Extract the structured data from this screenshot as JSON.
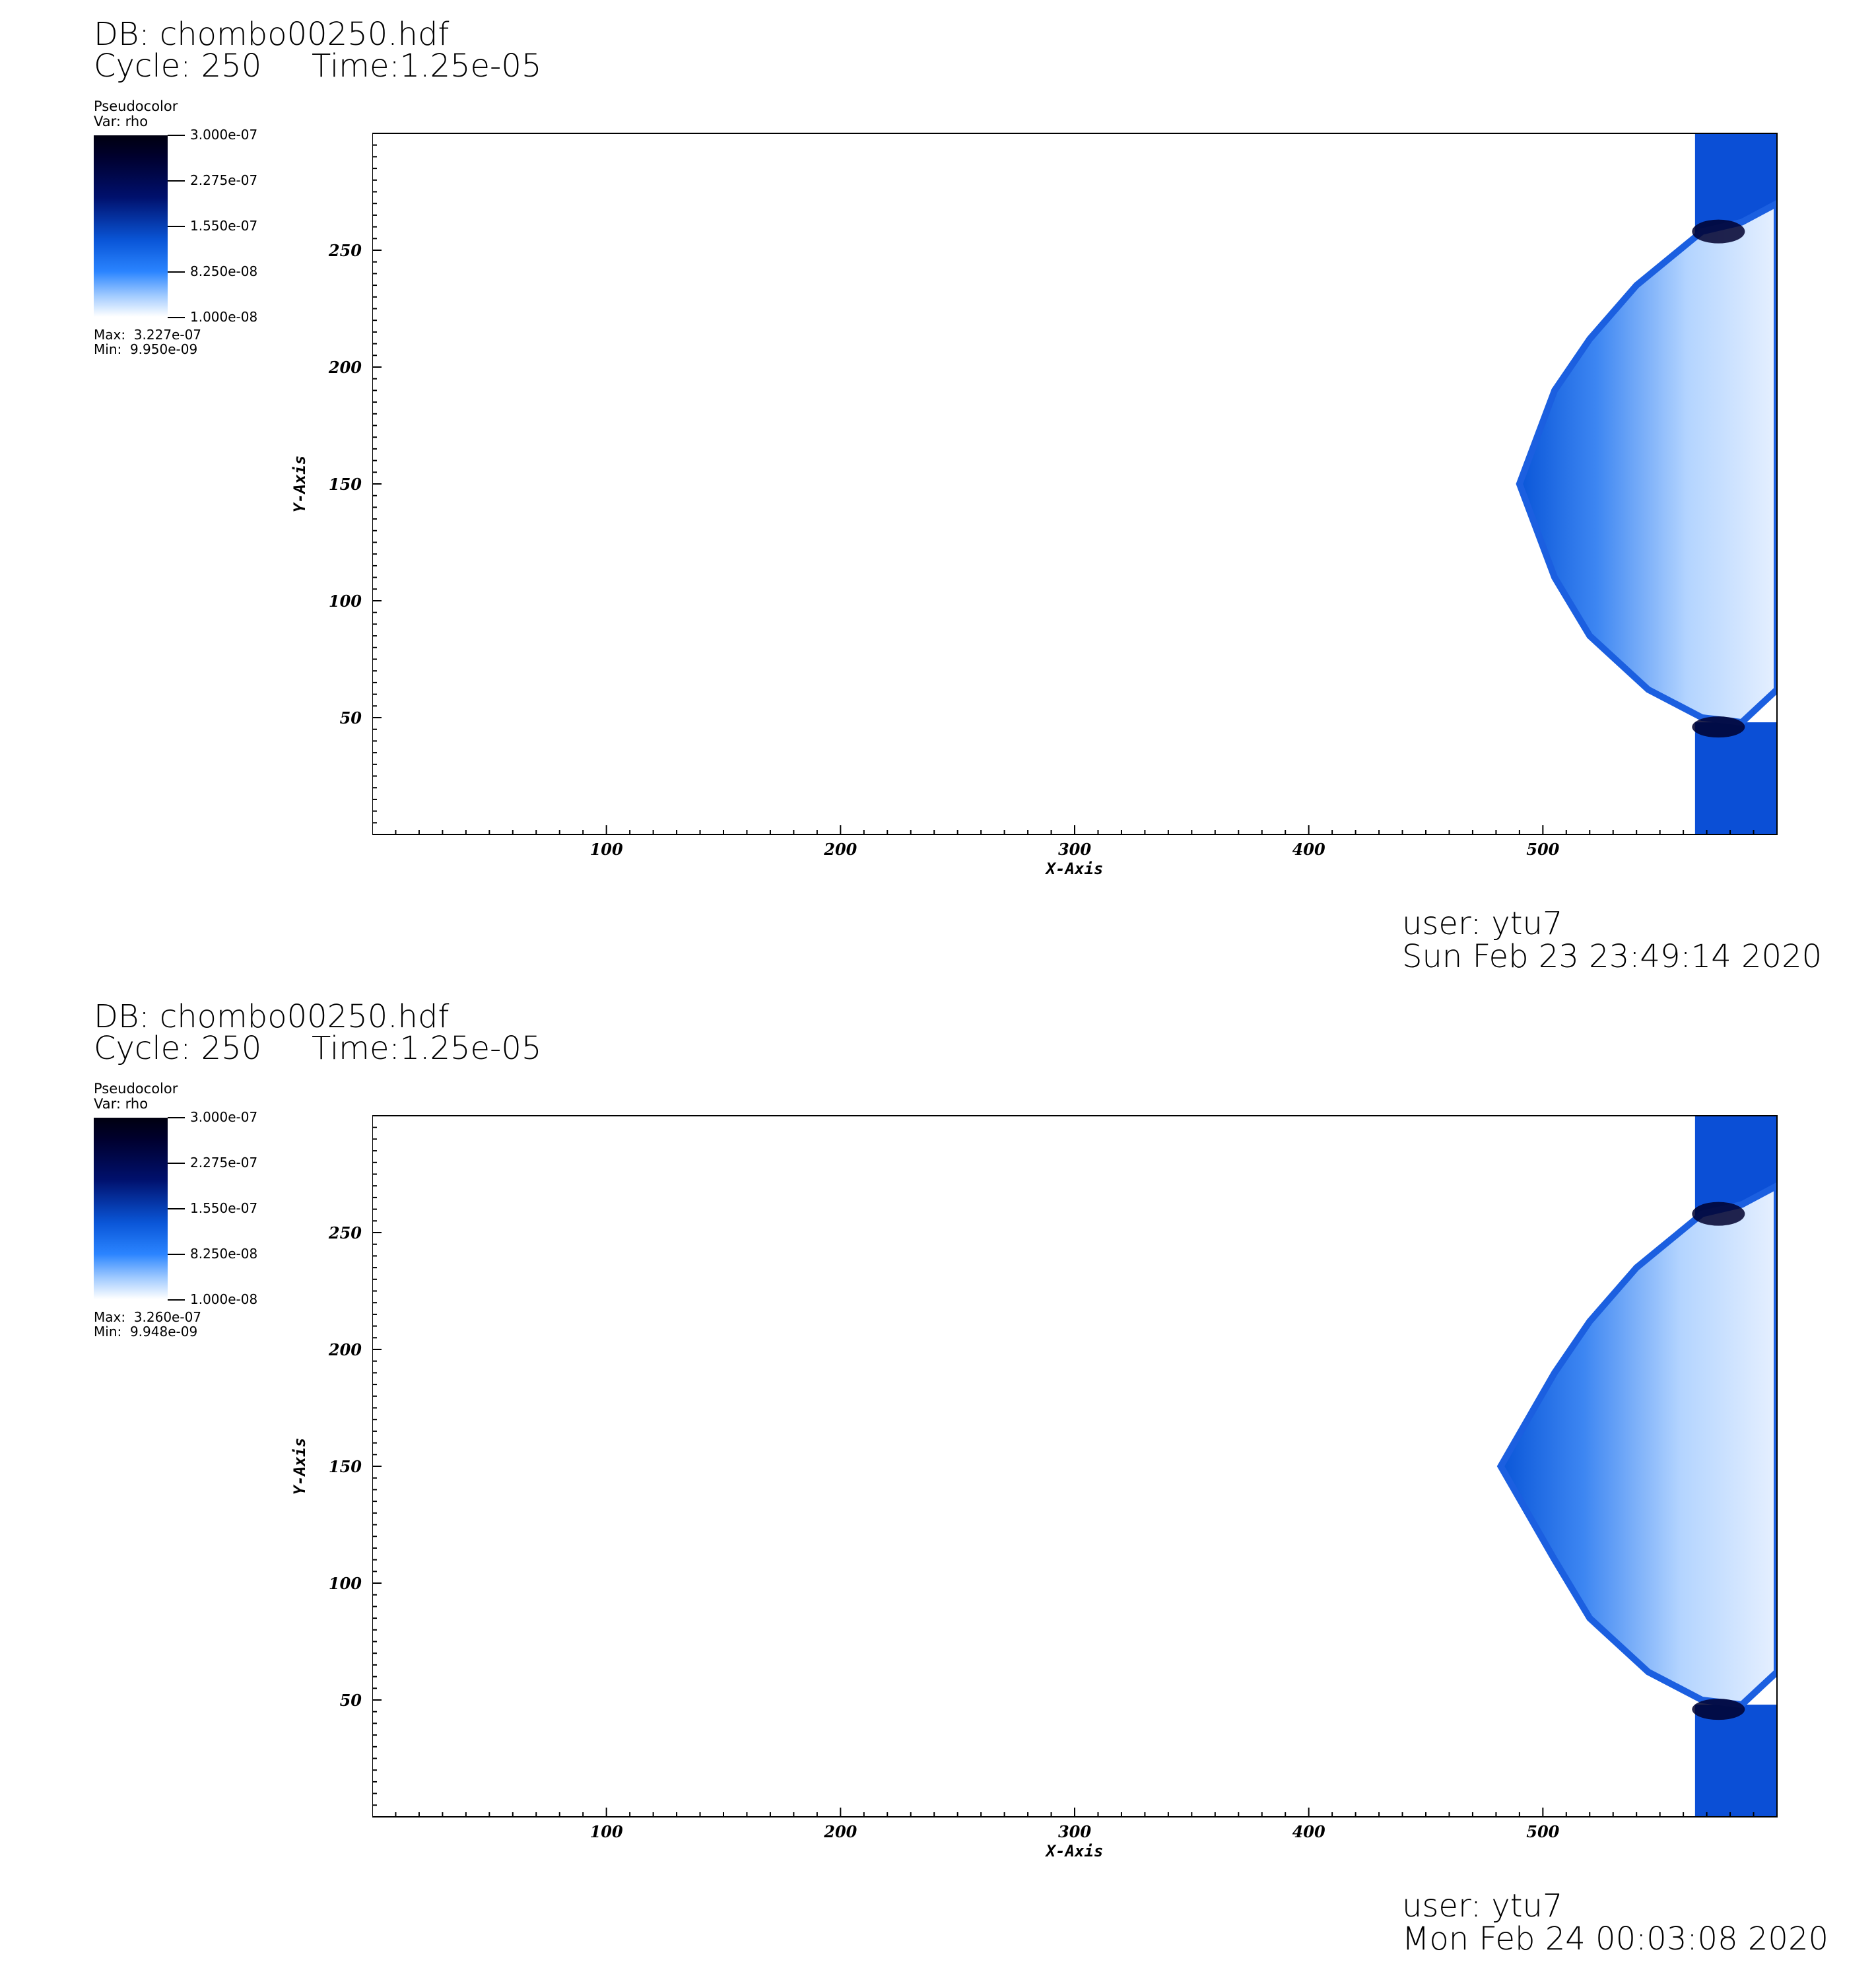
{
  "panels": [
    {
      "db_label": "DB: chombo00250.hdf",
      "cycle_label": "Cycle: 250",
      "time_label": "Time:1.25e-05",
      "legend": {
        "title": "Pseudocolor",
        "var": "Var: rho",
        "ticks": [
          "3.000e-07",
          "2.275e-07",
          "1.550e-07",
          "8.250e-08",
          "1.000e-08"
        ],
        "max": "Max:  3.227e-07",
        "min": "Min:  9.950e-09"
      },
      "user": "user: ytu7",
      "date": "Sun Feb 23 23:49:14 2020"
    },
    {
      "db_label": "DB: chombo00250.hdf",
      "cycle_label": "Cycle: 250",
      "time_label": "Time:1.25e-05",
      "legend": {
        "title": "Pseudocolor",
        "var": "Var: rho",
        "ticks": [
          "3.000e-07",
          "2.275e-07",
          "1.550e-07",
          "8.250e-08",
          "1.000e-08"
        ],
        "max": "Max:  3.260e-07",
        "min": "Min:  9.948e-09"
      },
      "user": "user: ytu7",
      "date": "Mon Feb 24 00:03:08 2020"
    }
  ],
  "chart_data": [
    {
      "type": "heatmap",
      "title": "",
      "xlabel": "X-Axis",
      "ylabel": "Y-Axis",
      "xlim": [
        0,
        600
      ],
      "ylim": [
        0,
        300
      ],
      "xticks": [
        100,
        200,
        300,
        400,
        500
      ],
      "yticks": [
        50,
        100,
        150,
        200,
        250
      ],
      "colorbar": {
        "variable": "rho",
        "min": 1e-08,
        "max": 3e-07
      },
      "colors": {
        "dark": "#00002e",
        "mid": "#0a56d8",
        "light": "#9ec9ff"
      },
      "front_x_min": 490
    },
    {
      "type": "heatmap",
      "title": "",
      "xlabel": "X-Axis",
      "ylabel": "Y-Axis",
      "xlim": [
        0,
        600
      ],
      "ylim": [
        0,
        300
      ],
      "xticks": [
        100,
        200,
        300,
        400,
        500
      ],
      "yticks": [
        50,
        100,
        150,
        200,
        250
      ],
      "colorbar": {
        "variable": "rho",
        "min": 1e-08,
        "max": 3e-07
      },
      "colors": {
        "dark": "#00002e",
        "mid": "#0a56d8",
        "light": "#9ec9ff"
      },
      "front_x_min": 482
    }
  ]
}
